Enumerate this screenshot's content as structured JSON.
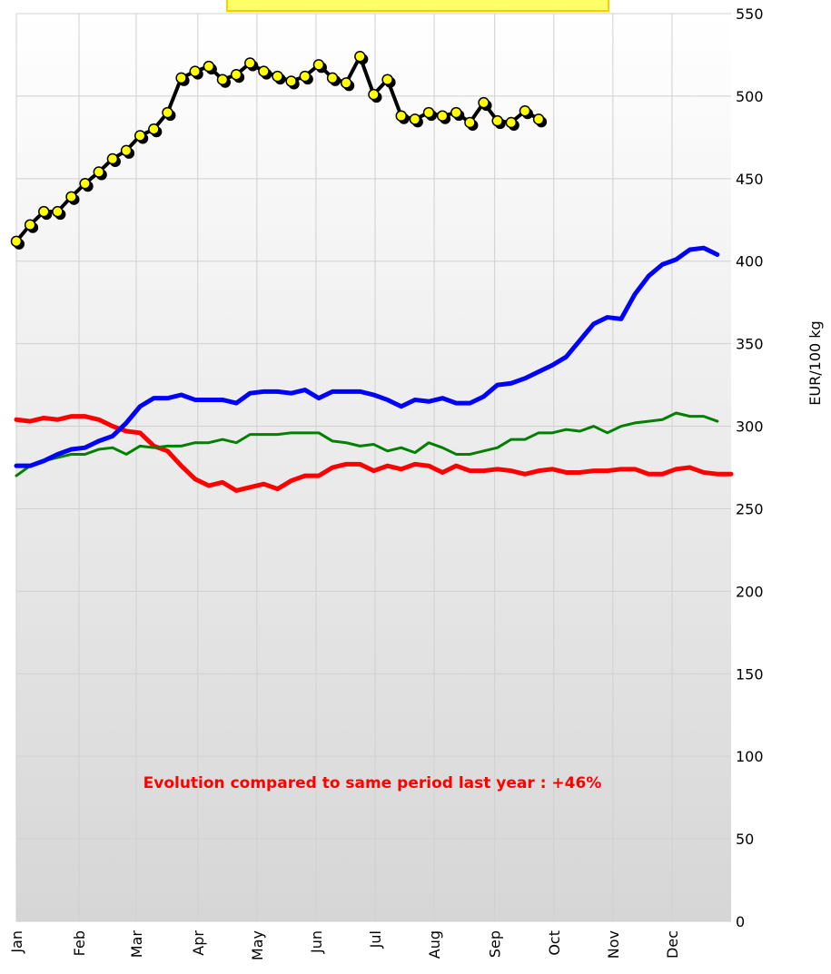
{
  "chart_data": {
    "type": "line",
    "annotation": "Evolution compared to same period last year : +46%",
    "y_label": "EUR/100 kg",
    "x": [
      0,
      1,
      2,
      3,
      4,
      5,
      6,
      7,
      8,
      9,
      10,
      11,
      12,
      13,
      14,
      15,
      16,
      17,
      18,
      19,
      20,
      21,
      22,
      23,
      24,
      25,
      26,
      27,
      28,
      29,
      30,
      31,
      32,
      33,
      34,
      35,
      36,
      37,
      38,
      39,
      40,
      41,
      42,
      43,
      44,
      45,
      46,
      47,
      48,
      49,
      50,
      51,
      52
    ],
    "xlim": [
      0,
      52
    ],
    "xticks": [
      {
        "value": 0,
        "label": "Jan"
      },
      {
        "value": 4.56,
        "label": "Feb"
      },
      {
        "value": 8.72,
        "label": "Mar"
      },
      {
        "value": 13.2,
        "label": "Apr"
      },
      {
        "value": 17.5,
        "label": "May"
      },
      {
        "value": 21.8,
        "label": "Jun"
      },
      {
        "value": 26.1,
        "label": "Jul"
      },
      {
        "value": 30.4,
        "label": "Aug"
      },
      {
        "value": 34.8,
        "label": "Sep"
      },
      {
        "value": 39.1,
        "label": "Oct"
      },
      {
        "value": 43.4,
        "label": "Nov"
      },
      {
        "value": 47.7,
        "label": "Dec"
      }
    ],
    "ylim": [
      0,
      550
    ],
    "yticks": [
      0,
      50,
      100,
      150,
      200,
      250,
      300,
      350,
      400,
      450,
      500,
      550
    ],
    "grid": true,
    "series": [
      {
        "color": "#ff0000",
        "width": 5,
        "values": [
          304,
          303,
          305,
          304,
          306,
          306,
          304,
          300,
          297,
          296,
          288,
          285,
          276,
          268,
          264,
          266,
          261,
          263,
          265,
          262,
          267,
          270,
          270,
          275,
          277,
          277,
          273,
          276,
          274,
          277,
          276,
          272,
          276,
          273,
          273,
          274,
          273,
          271,
          273,
          274,
          272,
          272,
          273,
          273,
          274,
          274,
          271,
          271,
          274,
          275,
          272,
          271,
          271
        ]
      },
      {
        "color": "#008000",
        "width": 3,
        "values": [
          270,
          276,
          279,
          281,
          283,
          283,
          286,
          287,
          283,
          288,
          287,
          288,
          288,
          290,
          290,
          292,
          290,
          295,
          295,
          295,
          296,
          296,
          296,
          291,
          290,
          288,
          289,
          285,
          287,
          284,
          290,
          287,
          283,
          283,
          285,
          287,
          292,
          292,
          296,
          296,
          298,
          297,
          300,
          296,
          300,
          302,
          303,
          304,
          308,
          306,
          306,
          303,
          null
        ]
      },
      {
        "color": "#0000ff",
        "width": 5,
        "values": [
          276,
          276,
          279,
          283,
          286,
          287,
          291,
          294,
          302,
          312,
          317,
          317,
          319,
          316,
          316,
          316,
          314,
          320,
          321,
          321,
          320,
          322,
          317,
          321,
          321,
          321,
          319,
          316,
          312,
          316,
          315,
          317,
          314,
          314,
          318,
          325,
          326,
          329,
          333,
          337,
          342,
          352,
          362,
          366,
          365,
          380,
          391,
          398,
          401,
          407,
          408,
          404,
          null
        ]
      },
      {
        "color": "#000000",
        "width": 4,
        "marker_color": "#ffff00",
        "values": [
          412,
          422,
          430,
          430,
          439,
          447,
          454,
          462,
          467,
          476,
          480,
          490,
          511,
          515,
          518,
          510,
          513,
          520,
          515,
          512,
          509,
          512,
          519,
          511,
          508,
          524,
          501,
          510,
          488,
          486,
          490,
          488,
          490,
          484,
          496,
          485,
          484,
          491,
          486,
          null,
          null,
          null,
          null,
          null,
          null,
          null,
          null,
          null,
          null,
          null,
          null,
          null,
          null
        ]
      }
    ]
  }
}
